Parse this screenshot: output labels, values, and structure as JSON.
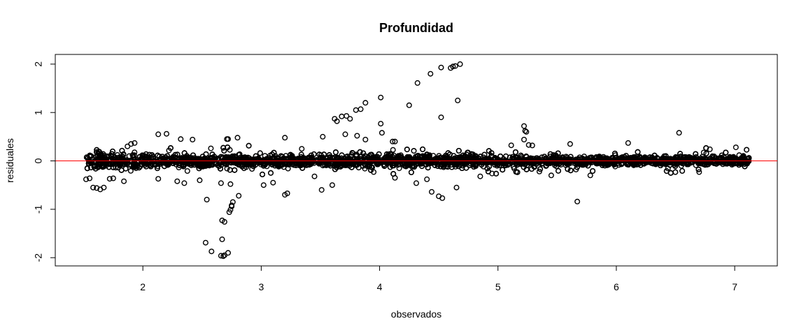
{
  "chart_data": {
    "type": "scatter",
    "title": "Profundidad",
    "xlabel": "observados",
    "ylabel": "residuales",
    "xlim": [
      1.26,
      7.36
    ],
    "ylim": [
      -2.17,
      2.2
    ],
    "xticks": [
      2,
      3,
      4,
      5,
      6,
      7
    ],
    "yticks": [
      -2,
      -1,
      0,
      1,
      2
    ],
    "grid": false,
    "legend": "none",
    "reference_line": {
      "y": 0,
      "color": "#ff0000"
    },
    "point_color": "#000000",
    "outliers": [
      [
        4.52,
        1.93
      ],
      [
        4.6,
        1.92
      ],
      [
        4.62,
        1.95
      ],
      [
        4.64,
        1.96
      ],
      [
        4.68,
        2.0
      ],
      [
        4.43,
        1.8
      ],
      [
        4.32,
        1.61
      ],
      [
        4.66,
        1.25
      ],
      [
        4.01,
        1.31
      ],
      [
        4.25,
        1.15
      ],
      [
        3.88,
        1.2
      ],
      [
        3.8,
        1.05
      ],
      [
        3.84,
        1.07
      ],
      [
        3.72,
        0.93
      ],
      [
        3.75,
        0.87
      ],
      [
        3.68,
        0.92
      ],
      [
        3.62,
        0.87
      ],
      [
        3.64,
        0.82
      ],
      [
        4.52,
        0.9
      ],
      [
        4.01,
        0.77
      ],
      [
        3.81,
        0.52
      ],
      [
        4.02,
        0.58
      ],
      [
        4.11,
        0.4
      ],
      [
        4.13,
        0.4
      ],
      [
        3.52,
        0.5
      ],
      [
        3.88,
        0.44
      ],
      [
        3.71,
        0.55
      ],
      [
        5.22,
        0.72
      ],
      [
        5.23,
        0.62
      ],
      [
        5.24,
        0.6
      ],
      [
        5.22,
        0.44
      ],
      [
        5.26,
        0.33
      ],
      [
        5.29,
        0.32
      ],
      [
        6.53,
        0.58
      ],
      [
        2.13,
        0.55
      ],
      [
        2.2,
        0.56
      ],
      [
        2.32,
        0.45
      ],
      [
        2.42,
        0.44
      ],
      [
        2.72,
        0.45
      ],
      [
        2.71,
        0.45
      ],
      [
        2.8,
        0.48
      ],
      [
        3.2,
        0.48
      ],
      [
        1.93,
        0.37
      ],
      [
        1.9,
        0.35
      ],
      [
        1.87,
        0.3
      ],
      [
        5.61,
        0.35
      ],
      [
        6.1,
        0.37
      ],
      [
        6.79,
        0.24
      ],
      [
        7.01,
        0.28
      ],
      [
        2.53,
        -1.69
      ],
      [
        2.58,
        -1.87
      ],
      [
        2.66,
        -1.96
      ],
      [
        2.68,
        -1.97
      ],
      [
        2.69,
        -1.95
      ],
      [
        2.72,
        -1.9
      ],
      [
        2.67,
        -1.62
      ],
      [
        2.67,
        -1.23
      ],
      [
        2.69,
        -1.26
      ],
      [
        2.73,
        -1.06
      ],
      [
        2.74,
        -1.01
      ],
      [
        2.75,
        -0.92
      ],
      [
        2.75,
        -0.94
      ],
      [
        2.76,
        -0.85
      ],
      [
        2.54,
        -0.8
      ],
      [
        2.66,
        -0.46
      ],
      [
        2.74,
        -0.48
      ],
      [
        2.81,
        -0.72
      ],
      [
        3.2,
        -0.7
      ],
      [
        3.22,
        -0.67
      ],
      [
        3.51,
        -0.6
      ],
      [
        3.6,
        -0.5
      ],
      [
        3.02,
        -0.5
      ],
      [
        3.1,
        -0.45
      ],
      [
        4.44,
        -0.64
      ],
      [
        4.5,
        -0.73
      ],
      [
        4.53,
        -0.77
      ],
      [
        4.65,
        -0.55
      ],
      [
        5.67,
        -0.84
      ],
      [
        1.52,
        -0.38
      ],
      [
        1.55,
        -0.36
      ],
      [
        1.58,
        -0.55
      ],
      [
        1.61,
        -0.56
      ],
      [
        1.64,
        -0.59
      ],
      [
        1.67,
        -0.55
      ],
      [
        1.72,
        -0.37
      ],
      [
        1.75,
        -0.36
      ],
      [
        1.84,
        -0.42
      ],
      [
        2.13,
        -0.37
      ],
      [
        2.29,
        -0.42
      ],
      [
        2.35,
        -0.46
      ],
      [
        2.48,
        -0.4
      ],
      [
        6.7,
        -0.23
      ],
      [
        5.35,
        -0.22
      ],
      [
        5.45,
        -0.3
      ],
      [
        5.78,
        -0.3
      ],
      [
        4.85,
        -0.32
      ],
      [
        4.95,
        -0.26
      ],
      [
        3.95,
        -0.23
      ],
      [
        4.13,
        -0.35
      ],
      [
        4.31,
        -0.46
      ],
      [
        4.4,
        -0.38
      ],
      [
        3.45,
        -0.32
      ]
    ]
  }
}
